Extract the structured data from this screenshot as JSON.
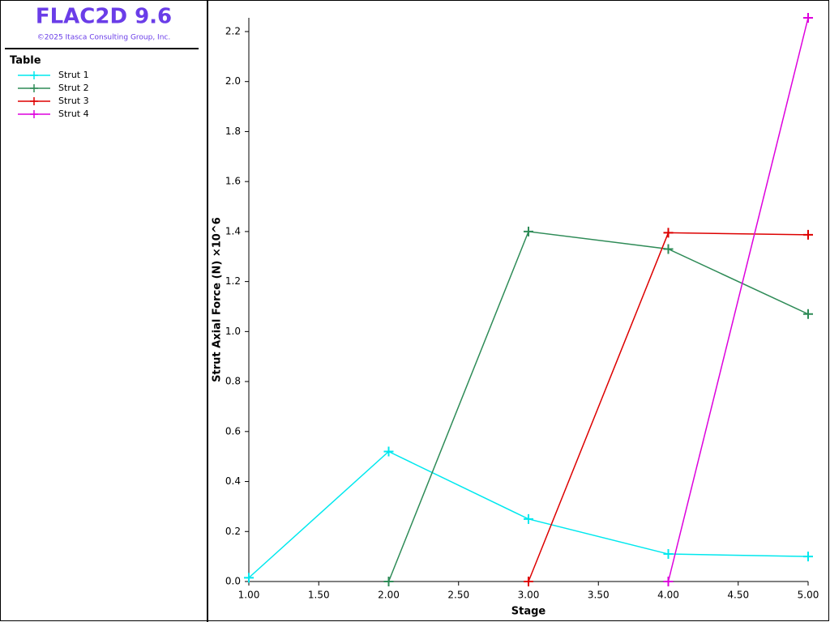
{
  "header": {
    "title": "FLAC2D 9.6",
    "copyright": "©2025 Itasca Consulting Group, Inc.",
    "panel_title": "Table"
  },
  "chart_data": {
    "type": "line",
    "xlabel": "Stage",
    "ylabel": "Strut Axial Force (N) ×10^6",
    "xlim": [
      1,
      5
    ],
    "ylim": [
      0,
      2.255
    ],
    "xticks": [
      {
        "value": 1,
        "label": "1.00"
      },
      {
        "value": 1.5,
        "label": "1.50"
      },
      {
        "value": 2,
        "label": "2.00"
      },
      {
        "value": 2.5,
        "label": "2.50"
      },
      {
        "value": 3,
        "label": "3.00"
      },
      {
        "value": 3.5,
        "label": "3.50"
      },
      {
        "value": 4,
        "label": "4.00"
      },
      {
        "value": 4.5,
        "label": "4.50"
      },
      {
        "value": 5,
        "label": "5.00"
      }
    ],
    "yticks": [
      {
        "value": 0,
        "label": "0.0"
      },
      0.2,
      0.4,
      0.6,
      0.8,
      {
        "value": 1,
        "label": "1.0"
      },
      1.2,
      1.4,
      1.6,
      1.8,
      {
        "value": 2,
        "label": "2.0"
      },
      2.2
    ],
    "series": [
      {
        "name": "Strut 1",
        "color": "#00e8ee",
        "x": [
          1,
          2,
          3,
          4,
          5
        ],
        "values": [
          0.015,
          0.52,
          0.25,
          0.11,
          0.1
        ]
      },
      {
        "name": "Strut 2",
        "color": "#2e8b57",
        "x": [
          2,
          3,
          4,
          5
        ],
        "values": [
          0,
          1.4,
          1.33,
          1.07
        ]
      },
      {
        "name": "Strut 3",
        "color": "#dd0000",
        "x": [
          3,
          4,
          5
        ],
        "values": [
          0,
          1.395,
          1.387
        ]
      },
      {
        "name": "Strut 4",
        "color": "#dd00dd",
        "x": [
          4,
          5
        ],
        "values": [
          0,
          2.255
        ]
      }
    ]
  }
}
